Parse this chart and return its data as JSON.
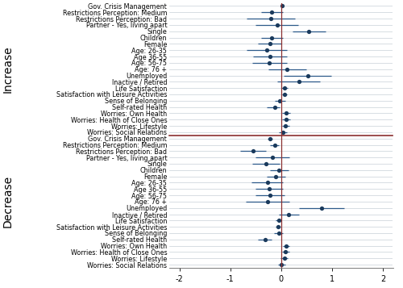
{
  "labels": [
    "Gov. Crisis Management",
    "Restrictions Perception: Medium",
    "Restrictions Perception: Bad",
    "Partner - Yes, living apart",
    "Single",
    "Children",
    "Female",
    "Age: 26-35",
    "Age 36-55",
    "Age: 56-75",
    "Age: 76 +",
    "Unemployed",
    "Inactive / Retired",
    "Life Satisfaction",
    "Satisfaction with Leisure Activities",
    "Sense of Belonging",
    "Self-rated Health",
    "Worries: Own Health",
    "Worries: Health of Close Ones",
    "Worries: Lifestyle",
    "Worries: Social Relations"
  ],
  "increase_coef": [
    0.02,
    -0.18,
    -0.2,
    -0.08,
    0.55,
    -0.18,
    -0.22,
    -0.28,
    -0.22,
    -0.23,
    0.12,
    0.52,
    0.35,
    0.07,
    0.07,
    -0.02,
    -0.13,
    0.1,
    0.1,
    0.09,
    0.04
  ],
  "increase_lo": [
    0.0,
    -0.4,
    -0.68,
    -0.5,
    0.22,
    -0.4,
    -0.45,
    -0.68,
    -0.55,
    -0.57,
    -0.25,
    0.05,
    -0.07,
    0.01,
    0.02,
    -0.12,
    -0.28,
    0.02,
    0.02,
    0.02,
    -0.04
  ],
  "increase_hi": [
    0.04,
    0.04,
    0.28,
    0.34,
    0.88,
    0.04,
    0.01,
    0.12,
    0.11,
    0.11,
    0.49,
    0.99,
    0.77,
    0.13,
    0.12,
    0.08,
    -0.02,
    0.18,
    0.18,
    0.16,
    0.12
  ],
  "decrease_coef": [
    -0.22,
    -0.13,
    -0.55,
    -0.17,
    -0.3,
    -0.04,
    -0.1,
    -0.27,
    -0.23,
    -0.22,
    -0.27,
    0.8,
    0.15,
    -0.05,
    -0.06,
    -0.05,
    -0.32,
    0.1,
    0.09,
    0.06,
    0.01
  ],
  "decrease_lo": [
    -0.27,
    -0.22,
    -0.8,
    -0.5,
    -0.57,
    -0.22,
    -0.28,
    -0.58,
    -0.5,
    -0.5,
    -0.7,
    0.36,
    -0.05,
    -0.1,
    -0.11,
    -0.14,
    -0.46,
    0.03,
    0.02,
    -0.01,
    -0.06
  ],
  "decrease_hi": [
    -0.17,
    -0.04,
    -0.3,
    0.16,
    -0.03,
    0.14,
    0.08,
    0.04,
    0.04,
    0.06,
    0.16,
    1.24,
    0.35,
    0.0,
    -0.01,
    0.04,
    -0.18,
    0.17,
    0.16,
    0.13,
    0.08
  ],
  "dot_color": "#1a3a5c",
  "line_color": "#2d5a8a",
  "ref_line_color": "#8b3030",
  "sep_line_color": "#8b3030",
  "row_line_color": "#c8d0d8",
  "bg_color": "#ffffff",
  "label_fontsize": 5.8,
  "tick_fontsize": 7.0,
  "panel_label_fontsize": 10,
  "xlim": [
    -2.2,
    2.2
  ],
  "xticks": [
    -2,
    -1,
    0,
    1,
    2
  ],
  "markersize": 3.8,
  "linewidth": 0.9
}
